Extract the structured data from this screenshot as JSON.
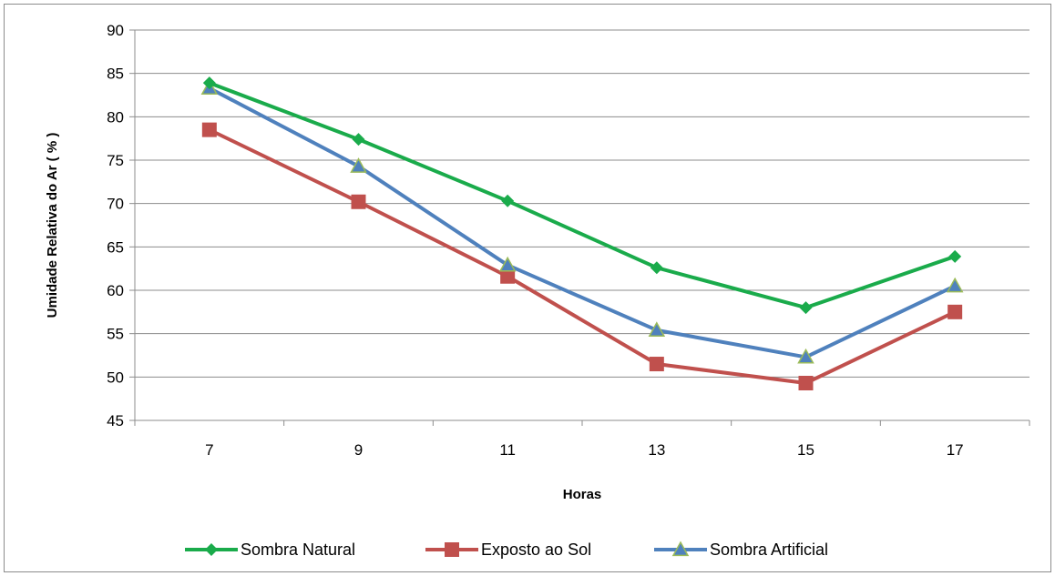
{
  "chart_data": {
    "type": "line",
    "title": "",
    "xlabel": "Horas",
    "ylabel": "Umidade Relativa do Ar ( % )",
    "categories": [
      "7",
      "9",
      "11",
      "13",
      "15",
      "17"
    ],
    "ylim": [
      45,
      90
    ],
    "yticks": [
      "45",
      "50",
      "55",
      "60",
      "65",
      "70",
      "75",
      "80",
      "85",
      "90"
    ],
    "grid": true,
    "legend_position": "bottom",
    "series": [
      {
        "name": "Sombra Natural",
        "color": "#1aab4b",
        "marker": "diamond",
        "values": [
          83.9,
          77.4,
          70.3,
          62.6,
          58.0,
          63.9
        ]
      },
      {
        "name": "Exposto ao Sol",
        "color": "#c0504d",
        "marker": "square",
        "values": [
          78.5,
          70.2,
          61.6,
          51.5,
          49.3,
          57.5
        ]
      },
      {
        "name": "Sombra Artificial",
        "color": "#4f81bd",
        "marker": "triangle",
        "values": [
          83.3,
          74.3,
          62.9,
          55.4,
          52.3,
          60.5
        ]
      }
    ]
  }
}
